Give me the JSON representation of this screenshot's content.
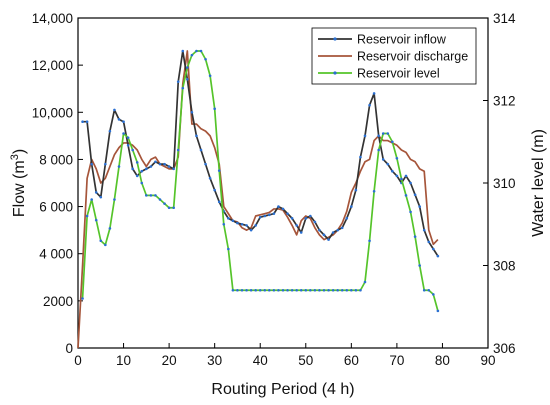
{
  "chart_data": {
    "type": "line",
    "xlabel": "Routing Period (4 h)",
    "ylabel_left": "Flow (m3)",
    "ylabel_right": "Water level (m)",
    "xlim": [
      0,
      90
    ],
    "xticks": [
      "0",
      "10",
      "20",
      "30",
      "40",
      "50",
      "60",
      "70",
      "80",
      "90"
    ],
    "ylim_left": [
      0,
      14000
    ],
    "yticks_left": [
      "0",
      "2000",
      "4 000",
      "6 000",
      "8 000",
      "10,000",
      "12,000",
      "14,000"
    ],
    "ylim_right": [
      306,
      314
    ],
    "yticks_right": [
      "306",
      "308",
      "310",
      "312",
      "314"
    ],
    "grid": false,
    "legend_position": "top-right",
    "series": [
      {
        "name": "Reservoir inflow",
        "axis": "left",
        "color": "#333333",
        "marker": "dot",
        "x": [
          1,
          2,
          3,
          4,
          5,
          6,
          7,
          8,
          9,
          10,
          11,
          12,
          13,
          14,
          15,
          16,
          17,
          18,
          19,
          20,
          21,
          22,
          23,
          24,
          25,
          26,
          27,
          28,
          29,
          30,
          31,
          32,
          33,
          34,
          35,
          36,
          37,
          38,
          39,
          40,
          41,
          42,
          43,
          44,
          45,
          46,
          47,
          48,
          49,
          50,
          51,
          52,
          53,
          54,
          55,
          56,
          57,
          58,
          59,
          60,
          61,
          62,
          63,
          64,
          65,
          66,
          67,
          68,
          69,
          70,
          71,
          72,
          73,
          74,
          75,
          76,
          77,
          78,
          79
        ],
        "y": [
          9600,
          9600,
          7800,
          6600,
          6400,
          7800,
          9200,
          10100,
          9700,
          9600,
          8600,
          7600,
          7300,
          7500,
          7600,
          7700,
          7900,
          7800,
          7800,
          7700,
          7600,
          11300,
          12600,
          11400,
          10000,
          9000,
          8400,
          7800,
          7200,
          6700,
          6200,
          5800,
          5500,
          5400,
          5300,
          5250,
          5200,
          5000,
          5200,
          5550,
          5600,
          5650,
          5700,
          6000,
          5900,
          5700,
          5500,
          5200,
          4900,
          5500,
          5600,
          5350,
          5000,
          4800,
          4600,
          4900,
          5000,
          5100,
          5500,
          6000,
          6700,
          8100,
          9000,
          10300,
          10800,
          9000,
          8000,
          7800,
          7500,
          7300,
          7000,
          7300,
          7000,
          6500,
          6000,
          5000,
          4500,
          4200,
          3900
        ]
      },
      {
        "name": "Reservoir discharge",
        "axis": "left",
        "color": "#a6553a",
        "marker": "none",
        "x": [
          0,
          1,
          2,
          3,
          4,
          5,
          6,
          7,
          8,
          9,
          10,
          11,
          12,
          13,
          14,
          15,
          16,
          17,
          18,
          19,
          20,
          21,
          22,
          23,
          24,
          25,
          26,
          27,
          28,
          29,
          30,
          31,
          32,
          33,
          34,
          35,
          36,
          37,
          38,
          39,
          40,
          41,
          42,
          43,
          44,
          45,
          46,
          47,
          48,
          49,
          50,
          51,
          52,
          53,
          54,
          55,
          56,
          57,
          58,
          59,
          60,
          61,
          62,
          63,
          64,
          65,
          66,
          67,
          68,
          69,
          70,
          71,
          72,
          73,
          74,
          75,
          76,
          77,
          78,
          79
        ],
        "y": [
          0,
          3500,
          7200,
          8000,
          7600,
          7000,
          7200,
          7700,
          8200,
          8500,
          8700,
          8700,
          8600,
          8400,
          8000,
          7700,
          8000,
          8100,
          7800,
          7700,
          7600,
          7600,
          8100,
          11200,
          12600,
          9500,
          9500,
          9300,
          9200,
          9000,
          8500,
          7800,
          6000,
          5700,
          5400,
          5350,
          5100,
          5000,
          5100,
          5600,
          5650,
          5700,
          5750,
          5900,
          5900,
          5850,
          5550,
          5200,
          4800,
          5400,
          5600,
          5500,
          5100,
          4800,
          4600,
          4700,
          4800,
          5000,
          5300,
          5800,
          6600,
          7000,
          7500,
          7900,
          8000,
          8800,
          9000,
          8800,
          8800,
          8700,
          8600,
          8400,
          8300,
          8000,
          7900,
          7600,
          7500,
          5000,
          4400,
          4600
        ]
      },
      {
        "name": "Reservoir level",
        "axis": "right",
        "color": "#55c42a",
        "marker": "dot",
        "x": [
          1,
          2,
          3,
          4,
          5,
          6,
          7,
          8,
          9,
          10,
          11,
          12,
          13,
          14,
          15,
          16,
          17,
          18,
          19,
          20,
          21,
          22,
          23,
          24,
          25,
          26,
          27,
          28,
          29,
          30,
          31,
          32,
          33,
          34,
          35,
          36,
          37,
          38,
          39,
          40,
          41,
          42,
          43,
          44,
          45,
          46,
          47,
          48,
          49,
          50,
          51,
          52,
          53,
          54,
          55,
          56,
          57,
          58,
          59,
          60,
          61,
          62,
          63,
          64,
          65,
          66,
          67,
          68,
          69,
          70,
          71,
          72,
          73,
          74,
          75,
          76,
          77,
          78,
          79
        ],
        "y": [
          307.2,
          309.2,
          309.6,
          309.1,
          308.6,
          308.5,
          308.9,
          309.6,
          310.4,
          311.2,
          311.1,
          310.8,
          310.5,
          310.0,
          309.7,
          309.7,
          309.7,
          309.6,
          309.5,
          309.4,
          309.4,
          310.8,
          312.3,
          312.8,
          313.1,
          313.2,
          313.2,
          313.0,
          312.6,
          311.8,
          310.3,
          309.0,
          308.4,
          307.4,
          307.4,
          307.4,
          307.4,
          307.4,
          307.4,
          307.4,
          307.4,
          307.4,
          307.4,
          307.4,
          307.4,
          307.4,
          307.4,
          307.4,
          307.4,
          307.4,
          307.4,
          307.4,
          307.4,
          307.4,
          307.4,
          307.4,
          307.4,
          307.4,
          307.4,
          307.4,
          307.4,
          307.4,
          307.6,
          308.6,
          309.8,
          310.8,
          311.2,
          311.2,
          311.0,
          310.6,
          310.1,
          309.7,
          309.3,
          308.7,
          308.0,
          307.4,
          307.4,
          307.3,
          306.9
        ]
      }
    ]
  }
}
